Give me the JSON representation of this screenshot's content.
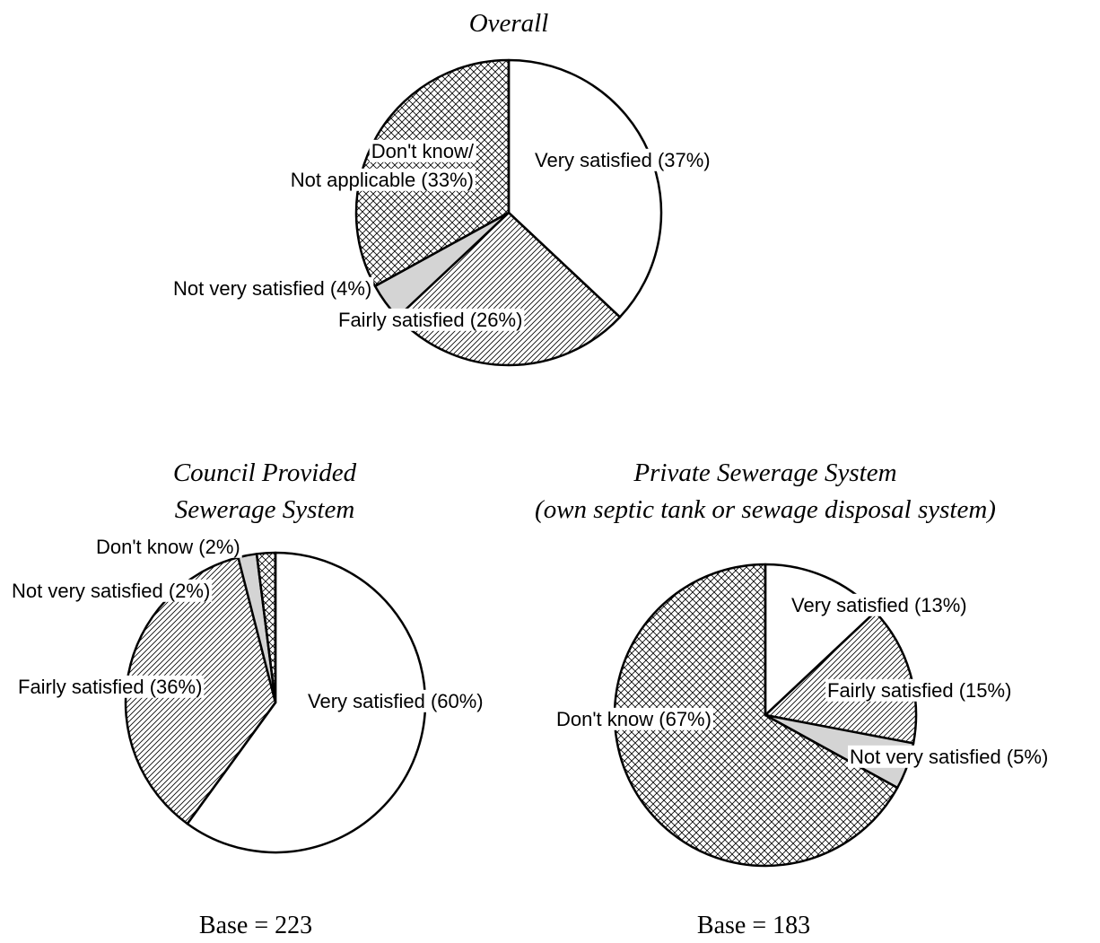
{
  "chart_data": [
    {
      "type": "pie",
      "title": [
        "Overall"
      ],
      "values": [
        37,
        26,
        4,
        33
      ],
      "value_labels": [
        [
          "Very satisfied (37%)"
        ],
        [
          "Fairly satisfied (26%)"
        ],
        [
          "Not very satisfied (4%)"
        ],
        [
          "Don't know/",
          "Not applicable (33%)"
        ]
      ],
      "fills": [
        "white",
        "hatch",
        "#d4d4d4",
        "crosshatch"
      ]
    },
    {
      "type": "pie",
      "title": [
        "Council Provided",
        "Sewerage System"
      ],
      "values": [
        60,
        36,
        2,
        2
      ],
      "value_labels": [
        [
          "Very satisfied (60%)"
        ],
        [
          "Fairly satisfied (36%)"
        ],
        [
          "Not very satisfied (2%)"
        ],
        [
          "Don't know (2%)"
        ]
      ],
      "fills": [
        "white",
        "hatch",
        "#d4d4d4",
        "crosshatch"
      ],
      "note": "Base = 223"
    },
    {
      "type": "pie",
      "title": [
        "Private Sewerage System",
        "(own septic tank or sewage disposal system)"
      ],
      "values": [
        13,
        15,
        5,
        67
      ],
      "value_labels": [
        [
          "Very satisfied (13%)"
        ],
        [
          "Fairly satisfied (15%)"
        ],
        [
          "Not very satisfied (5%)"
        ],
        [
          "Don't know (67%)"
        ]
      ],
      "fills": [
        "white",
        "hatch",
        "#d4d4d4",
        "crosshatch"
      ],
      "note": "Base = 183"
    }
  ]
}
